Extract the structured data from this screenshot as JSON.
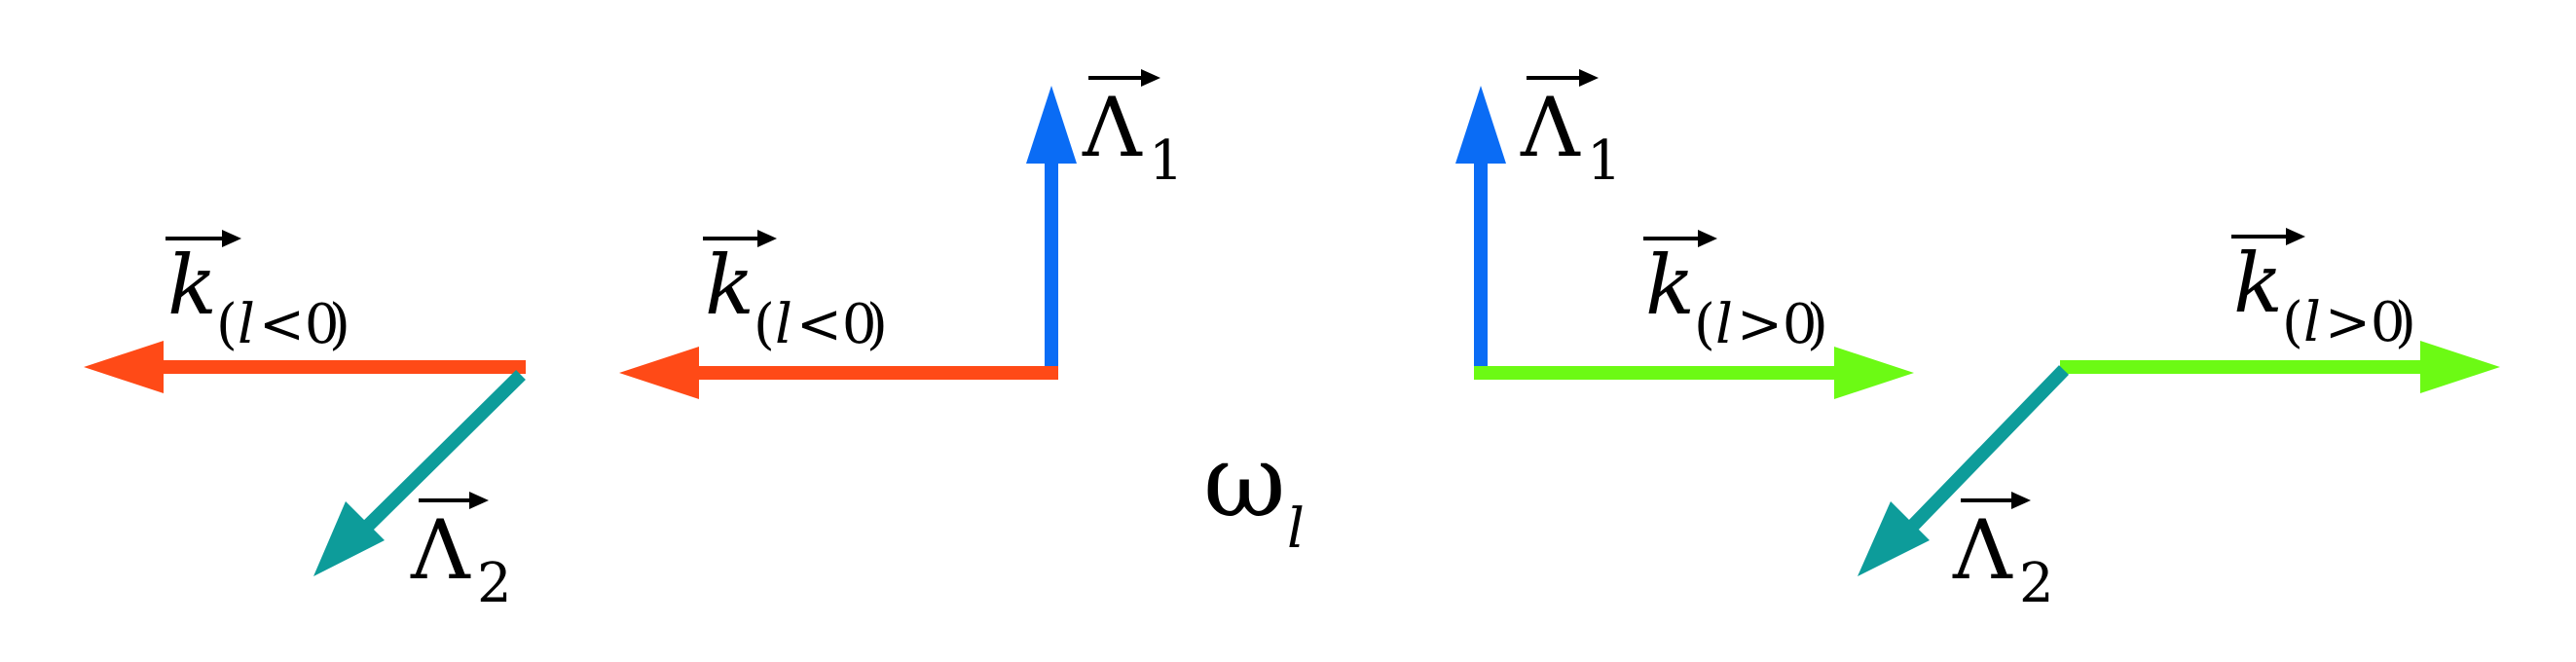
{
  "colors": {
    "orange": "#ff4a17",
    "teal": "#0d9c9a",
    "blue": "#0a6cf5",
    "green": "#6cfa14",
    "text": "#000000"
  },
  "labels": {
    "k": "k",
    "lambda": "Λ",
    "one": "1",
    "two": "2",
    "l": "l",
    "lt_zero": "<0",
    "gt_zero": ">0",
    "paren_open": "(",
    "paren_close": ")",
    "omega": "ω"
  }
}
